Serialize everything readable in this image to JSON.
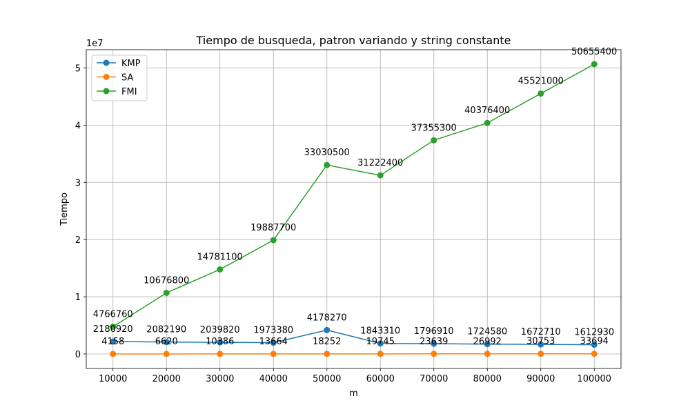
{
  "chart_data": {
    "type": "line",
    "title": "Tiempo de busqueda, patron variando y string constante",
    "xlabel": "m",
    "ylabel": "Tiempo",
    "y_offset_text": "1e7",
    "x": [
      10000,
      20000,
      30000,
      40000,
      50000,
      60000,
      70000,
      80000,
      90000,
      100000
    ],
    "x_tick_labels": [
      "10000",
      "20000",
      "30000",
      "40000",
      "50000",
      "60000",
      "70000",
      "80000",
      "90000",
      "100000"
    ],
    "y_ticks": [
      0,
      10000000,
      20000000,
      30000000,
      40000000,
      50000000
    ],
    "y_tick_labels": [
      "0",
      "1",
      "2",
      "3",
      "4",
      "5"
    ],
    "xlim": [
      5000,
      105000
    ],
    "ylim": [
      -2532700,
      53188100
    ],
    "grid": true,
    "legend_position": "top-left",
    "series": [
      {
        "name": "KMP",
        "color": "#1f77b4",
        "values": [
          2180920,
          2082190,
          2039820,
          1973380,
          4178270,
          1843310,
          1796910,
          1724580,
          1672710,
          1612930
        ],
        "labels": [
          "2180920",
          "2082190",
          "2039820",
          "1973380",
          "4178270",
          "1843310",
          "1796910",
          "1724580",
          "1672710",
          "1612930"
        ]
      },
      {
        "name": "SA",
        "color": "#ff7f0e",
        "values": [
          4158,
          6620,
          10386,
          13664,
          18252,
          19745,
          23639,
          26992,
          30753,
          33694
        ],
        "labels": [
          "4158",
          "6620",
          "10386",
          "13664",
          "18252",
          "19745",
          "23639",
          "26992",
          "30753",
          "33694"
        ]
      },
      {
        "name": "FMI",
        "color": "#2ca02c",
        "values": [
          4766760,
          10676800,
          14781100,
          19887700,
          33030500,
          31222400,
          37355300,
          40376400,
          45521000,
          50655400
        ],
        "labels": [
          "4766760",
          "10676800",
          "14781100",
          "19887700",
          "33030500",
          "31222400",
          "37355300",
          "40376400",
          "45521000",
          "50655400"
        ]
      }
    ]
  }
}
